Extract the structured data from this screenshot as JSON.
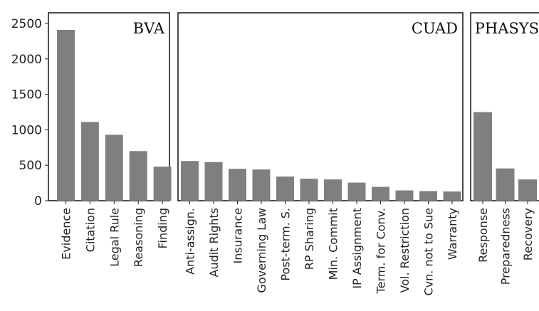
{
  "chart_data": {
    "type": "bar",
    "ylim": [
      0,
      2500
    ],
    "yticks": [
      0,
      500,
      1000,
      1500,
      2000,
      2500
    ],
    "bar_color": "#7f7f7f",
    "panels": [
      {
        "title": "BVA",
        "categories": [
          "Evidence",
          "Citation",
          "Legal Rule",
          "Reasoning",
          "Finding"
        ],
        "values": [
          2410,
          1110,
          930,
          700,
          480
        ]
      },
      {
        "title": "CUAD",
        "categories": [
          "Anti-assign.",
          "Audit Rights",
          "Insurance",
          "Governing Law",
          "Post-term. S.",
          "RP Sharing",
          "Min. Commit",
          "IP Assignment",
          "Term. for Conv.",
          "Vol. Restriction",
          "Cvn. not to Sue",
          "Warranty"
        ],
        "values": [
          560,
          545,
          450,
          440,
          340,
          310,
          300,
          255,
          195,
          145,
          135,
          130
        ]
      },
      {
        "title": "PHASYS",
        "categories": [
          "Response",
          "Preparedness",
          "Recovery"
        ],
        "values": [
          1250,
          455,
          300
        ]
      }
    ]
  }
}
